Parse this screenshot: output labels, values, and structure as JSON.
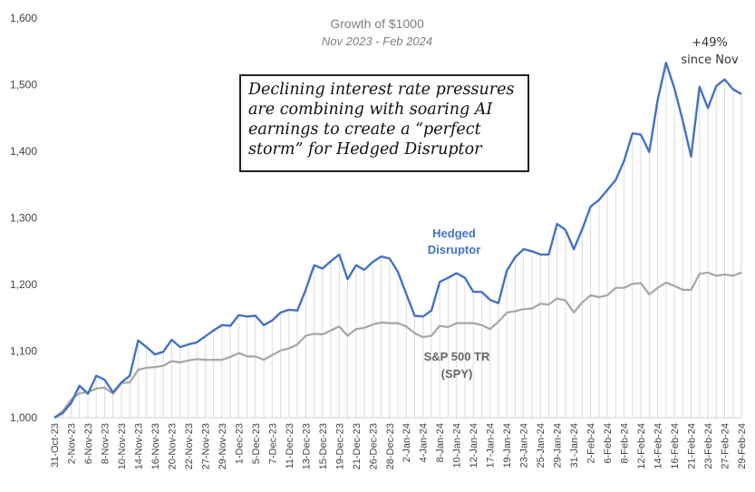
{
  "chart_data": {
    "type": "line",
    "title": "Growth of $1000",
    "subtitle": "Nov 2023 - Feb 2024",
    "ylim": [
      1000,
      1600
    ],
    "yticks": [
      "1,000",
      "1,100",
      "1,200",
      "1,300",
      "1,400",
      "1,500",
      "1,600"
    ],
    "xtick_labels": [
      "31-Oct-23",
      "2-Nov-23",
      "6-Nov-23",
      "8-Nov-23",
      "10-Nov-23",
      "14-Nov-23",
      "16-Nov-23",
      "20-Nov-23",
      "22-Nov-23",
      "27-Nov-23",
      "29-Nov-23",
      "1-Dec-23",
      "5-Dec-23",
      "7-Dec-23",
      "11-Dec-23",
      "13-Dec-23",
      "15-Dec-23",
      "19-Dec-23",
      "21-Dec-23",
      "26-Dec-23",
      "28-Dec-23",
      "2-Jan-24",
      "4-Jan-24",
      "8-Jan-24",
      "10-Jan-24",
      "12-Jan-24",
      "17-Jan-24",
      "19-Jan-24",
      "23-Jan-24",
      "25-Jan-24",
      "29-Jan-24",
      "31-Jan-24",
      "2-Feb-24",
      "6-Feb-24",
      "8-Feb-24",
      "12-Feb-24",
      "14-Feb-24",
      "16-Feb-24",
      "21-Feb-24",
      "23-Feb-24",
      "27-Feb-24",
      "29-Feb-24"
    ],
    "series": [
      {
        "name": "Hedged Disruptor",
        "color": "#4472c4",
        "values": [
          1000,
          1007,
          1022,
          1048,
          1036,
          1063,
          1057,
          1038,
          1053,
          1063,
          1116,
          1106,
          1095,
          1099,
          1117,
          1106,
          1110,
          1113,
          1122,
          1131,
          1139,
          1138,
          1154,
          1152,
          1153,
          1139,
          1146,
          1158,
          1162,
          1161,
          1192,
          1229,
          1224,
          1235,
          1245,
          1208,
          1229,
          1222,
          1234,
          1242,
          1239,
          1219,
          1186,
          1153,
          1152,
          1161,
          1204,
          1210,
          1217,
          1210,
          1189,
          1189,
          1177,
          1172,
          1221,
          1241,
          1253,
          1250,
          1245,
          1245,
          1291,
          1282,
          1253,
          1283,
          1317,
          1327,
          1342,
          1357,
          1386,
          1427,
          1425,
          1399,
          1477,
          1533,
          1495,
          1446,
          1392,
          1497,
          1465,
          1498,
          1508,
          1493,
          1486
        ]
      },
      {
        "name": "S&P 500 TR (SPY)",
        "color": "#a6a6a6",
        "values": [
          1000,
          1010,
          1027,
          1037,
          1038,
          1044,
          1045,
          1036,
          1052,
          1053,
          1072,
          1075,
          1076,
          1078,
          1085,
          1083,
          1086,
          1088,
          1087,
          1087,
          1087,
          1091,
          1097,
          1092,
          1092,
          1087,
          1094,
          1101,
          1104,
          1110,
          1123,
          1126,
          1125,
          1131,
          1137,
          1123,
          1133,
          1135,
          1140,
          1143,
          1142,
          1142,
          1137,
          1127,
          1121,
          1123,
          1138,
          1136,
          1142,
          1142,
          1142,
          1139,
          1133,
          1144,
          1158,
          1160,
          1163,
          1164,
          1171,
          1170,
          1179,
          1176,
          1158,
          1173,
          1184,
          1181,
          1184,
          1195,
          1195,
          1201,
          1202,
          1185,
          1195,
          1203,
          1198,
          1192,
          1192,
          1216,
          1218,
          1213,
          1215,
          1213,
          1218
        ]
      }
    ],
    "labels": {
      "hedged_line1": "Hedged",
      "hedged_line2": "Disruptor",
      "spy_line1": "S&P 500 TR",
      "spy_line2": "(SPY)",
      "note_line1": "+49%",
      "note_line2": "since Nov"
    },
    "callout": "Declining interest rate pressures are combining with soaring AI earnings to create a “perfect storm” for Hedged Disruptor",
    "grid": "vertical drop lines"
  }
}
